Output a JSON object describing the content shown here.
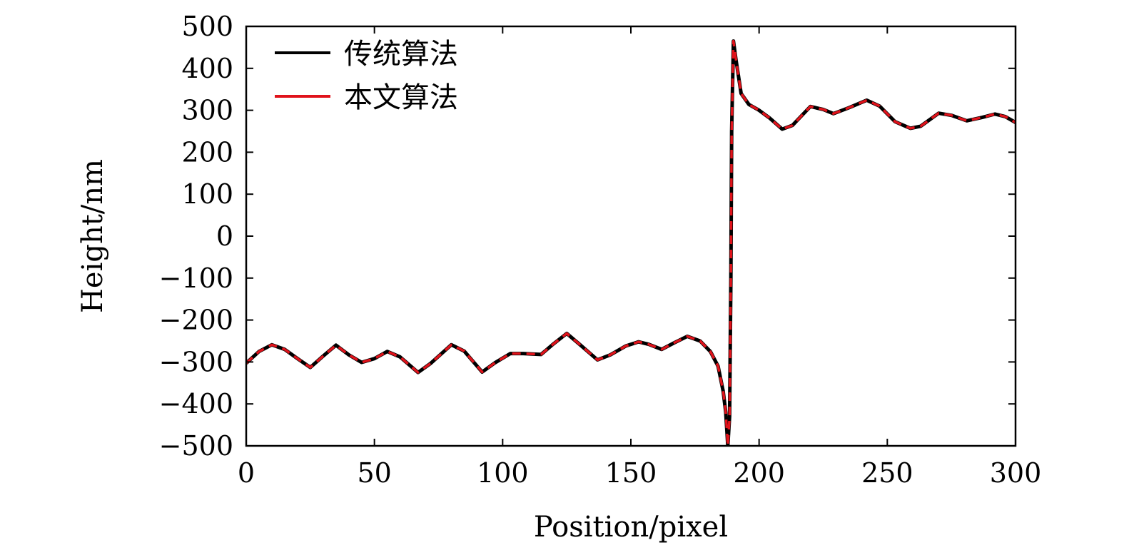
{
  "chart_data": {
    "type": "line",
    "xlabel": "Position/pixel",
    "ylabel": "Height/nm",
    "xlim": [
      0,
      300
    ],
    "ylim": [
      -500,
      500
    ],
    "xticks": [
      0,
      50,
      100,
      150,
      200,
      250,
      300
    ],
    "yticks": [
      500,
      400,
      300,
      200,
      100,
      0,
      -100,
      -200,
      -300,
      -400,
      -500
    ],
    "xtick_labels": [
      "0",
      "50",
      "100",
      "150",
      "200",
      "250",
      "300"
    ],
    "ytick_labels": [
      "500",
      "400",
      "300",
      "200",
      "100",
      "0",
      "−100",
      "−200",
      "−300",
      "−400",
      "−500"
    ],
    "grid": false,
    "legend_position": "top-left",
    "series": [
      {
        "name": "传统算法",
        "color": "#000000",
        "style": "solid",
        "x": [
          0,
          5,
          10,
          15,
          20,
          25,
          30,
          35,
          40,
          45,
          50,
          55,
          60,
          67,
          72,
          80,
          85,
          92,
          97,
          103,
          108,
          115,
          120,
          125,
          130,
          137,
          142,
          148,
          153,
          157,
          162,
          167,
          172,
          177,
          181,
          184,
          186,
          187,
          187.8,
          188.5,
          189,
          189.3,
          190,
          191,
          193,
          196,
          200,
          204,
          209,
          213,
          220,
          225,
          229,
          235,
          242,
          247,
          253,
          259,
          263,
          270,
          275,
          281,
          287,
          292,
          296,
          300
        ],
        "y": [
          -303,
          -275,
          -259,
          -270,
          -292,
          -313,
          -286,
          -260,
          -283,
          -301,
          -292,
          -275,
          -288,
          -325,
          -303,
          -259,
          -274,
          -324,
          -302,
          -280,
          -280,
          -282,
          -256,
          -232,
          -258,
          -295,
          -283,
          -262,
          -252,
          -258,
          -270,
          -254,
          -239,
          -250,
          -275,
          -310,
          -370,
          -420,
          -500,
          -430,
          -100,
          250,
          465,
          420,
          340,
          314,
          300,
          282,
          255,
          264,
          309,
          302,
          292,
          306,
          324,
          310,
          273,
          257,
          262,
          293,
          288,
          275,
          283,
          291,
          285,
          271
        ]
      },
      {
        "name": "本文算法",
        "color": "#e0131b",
        "style": "dashed",
        "x": [
          0,
          5,
          10,
          15,
          20,
          25,
          30,
          35,
          40,
          45,
          50,
          55,
          60,
          67,
          72,
          80,
          85,
          92,
          97,
          103,
          108,
          115,
          120,
          125,
          130,
          137,
          142,
          148,
          153,
          157,
          162,
          167,
          172,
          177,
          181,
          184,
          186,
          187,
          187.8,
          188.5,
          189,
          189.3,
          190,
          191,
          193,
          196,
          200,
          204,
          209,
          213,
          220,
          225,
          229,
          235,
          242,
          247,
          253,
          259,
          263,
          270,
          275,
          281,
          287,
          292,
          296,
          300
        ],
        "y": [
          -303,
          -275,
          -259,
          -270,
          -292,
          -313,
          -286,
          -260,
          -283,
          -301,
          -292,
          -275,
          -288,
          -325,
          -303,
          -259,
          -274,
          -324,
          -302,
          -280,
          -280,
          -282,
          -256,
          -232,
          -258,
          -295,
          -283,
          -262,
          -252,
          -258,
          -270,
          -254,
          -239,
          -250,
          -275,
          -310,
          -370,
          -420,
          -500,
          -430,
          -100,
          250,
          465,
          420,
          340,
          314,
          300,
          282,
          255,
          264,
          309,
          302,
          292,
          306,
          324,
          310,
          273,
          257,
          262,
          293,
          288,
          275,
          283,
          291,
          285,
          271
        ]
      }
    ]
  }
}
